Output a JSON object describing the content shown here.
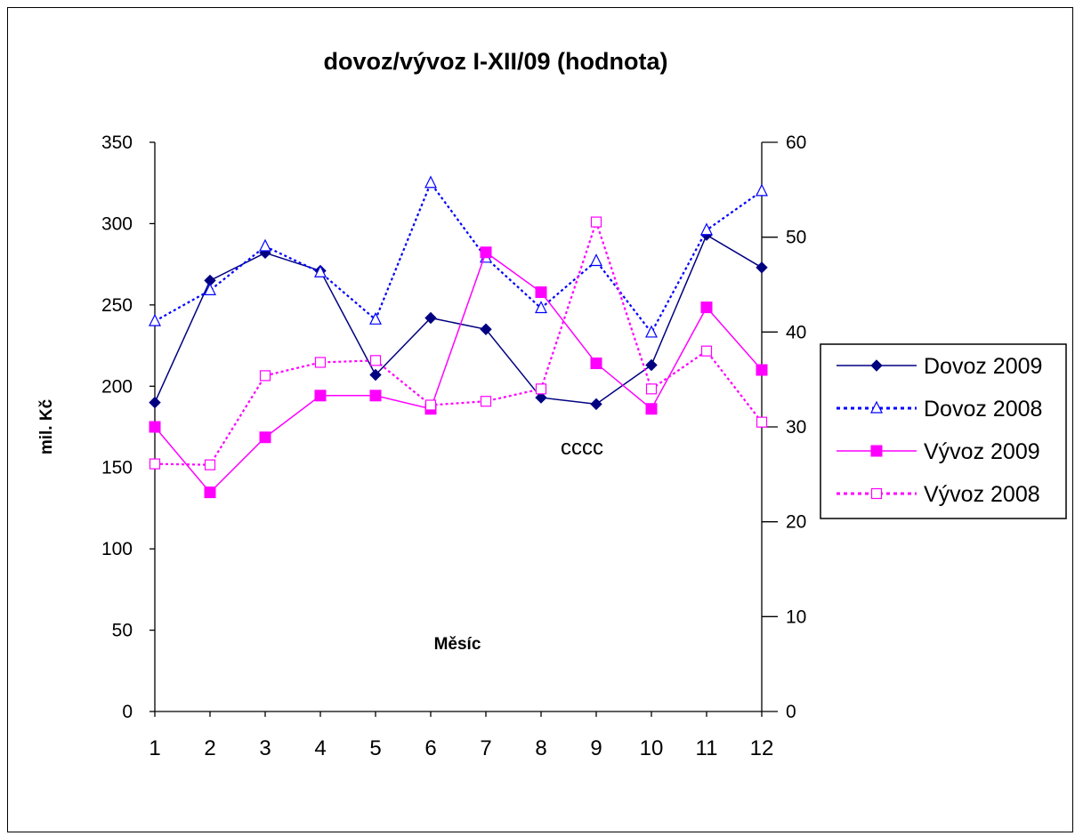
{
  "chart_data": {
    "type": "line",
    "title": "dovoz/vývoz I-XII/09 (hodnota)",
    "xlabel": "Měsíc",
    "ylabel": "mil. Kč",
    "categories": [
      "1",
      "2",
      "3",
      "4",
      "5",
      "6",
      "7",
      "8",
      "9",
      "10",
      "11",
      "12"
    ],
    "ylim": [
      0,
      350
    ],
    "y_ticks": [
      0,
      50,
      100,
      150,
      200,
      250,
      300,
      350
    ],
    "y2lim": [
      0,
      60
    ],
    "y2_ticks": [
      0,
      10,
      20,
      30,
      40,
      50,
      60
    ],
    "annotation": "cccc",
    "legend_position": "right",
    "series": [
      {
        "name": "Dovoz 2009",
        "axis": "left",
        "color": "#000080",
        "line": "solid",
        "marker": "diamond-filled",
        "values": [
          190,
          265,
          282,
          271,
          207,
          242,
          235,
          193,
          189,
          213,
          293,
          273
        ]
      },
      {
        "name": "Dovoz 2008",
        "axis": "left",
        "color": "#0000ff",
        "line": "dotted",
        "marker": "triangle-open",
        "values": [
          240,
          259,
          286,
          270,
          241,
          325,
          279,
          248,
          277,
          233,
          296,
          320
        ]
      },
      {
        "name": "Vývoz 2009",
        "axis": "right",
        "color": "#ff00ff",
        "line": "solid",
        "marker": "square-filled",
        "values": [
          30,
          23.1,
          28.9,
          33.3,
          33.3,
          31.9,
          48.4,
          44.2,
          36.7,
          31.9,
          42.6,
          36.0
        ]
      },
      {
        "name": "Vývoz 2008",
        "axis": "right",
        "color": "#ff00ff",
        "line": "dotted",
        "marker": "square-open",
        "values": [
          26.1,
          26.0,
          35.4,
          36.8,
          37.0,
          32.3,
          32.7,
          34.0,
          51.6,
          34.0,
          38.0,
          30.5
        ]
      }
    ]
  }
}
